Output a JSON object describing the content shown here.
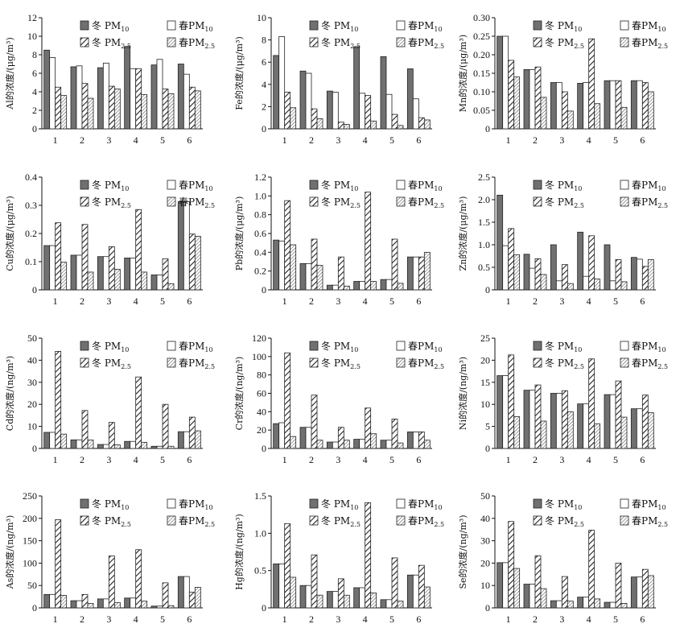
{
  "legend_text": {
    "w10": [
      "冬 PM",
      "10"
    ],
    "s10": [
      "春PM",
      "10"
    ],
    "w25": [
      "冬 PM",
      "2.5"
    ],
    "s25": [
      "春PM",
      "2.5"
    ]
  },
  "legend_styles": {
    "w10": {
      "fill": "#707070",
      "pattern": "solid"
    },
    "s10": {
      "fill": "#ffffff",
      "pattern": "solid"
    },
    "w25": {
      "fill": "#ffffff",
      "pattern": "hatch-wide"
    },
    "s25": {
      "fill": "#ffffff",
      "pattern": "hatch-fine"
    }
  },
  "chart_data": [
    {
      "type": "bar",
      "ylabel": "Al的浓度/(μg/m³)",
      "ylim": [
        0,
        12
      ],
      "yticks": [
        "0",
        "2",
        "4",
        "6",
        "8",
        "10",
        "12"
      ],
      "categories": [
        "1",
        "2",
        "3",
        "4",
        "5",
        "6"
      ],
      "series": [
        {
          "name": "冬 PM10",
          "values": [
            8.5,
            6.7,
            6.6,
            8.9,
            6.9,
            7.0
          ]
        },
        {
          "name": "春PM10",
          "values": [
            7.7,
            6.8,
            7.1,
            6.5,
            7.5,
            5.9
          ]
        },
        {
          "name": "冬 PM2.5",
          "values": [
            4.5,
            4.9,
            4.6,
            6.5,
            4.3,
            4.5
          ]
        },
        {
          "name": "春PM2.5",
          "values": [
            3.6,
            3.3,
            4.3,
            3.7,
            3.8,
            4.1
          ]
        }
      ]
    },
    {
      "type": "bar",
      "ylabel": "Fe的浓度/(μg/m³)",
      "ylim": [
        0,
        10
      ],
      "yticks": [
        "0",
        "2",
        "4",
        "6",
        "8",
        "10"
      ],
      "categories": [
        "1",
        "2",
        "3",
        "4",
        "5",
        "6"
      ],
      "series": [
        {
          "name": "冬 PM10",
          "values": [
            6.6,
            5.2,
            3.4,
            7.4,
            6.5,
            5.4
          ]
        },
        {
          "name": "春PM10",
          "values": [
            8.3,
            5.0,
            3.3,
            3.2,
            3.1,
            2.7
          ]
        },
        {
          "name": "冬 PM2.5",
          "values": [
            3.3,
            1.8,
            0.6,
            3.0,
            1.3,
            1.0
          ]
        },
        {
          "name": "春PM2.5",
          "values": [
            1.9,
            0.9,
            0.4,
            0.7,
            0.3,
            0.8
          ]
        }
      ]
    },
    {
      "type": "bar",
      "ylabel": "Mn的浓度/(μg/m³)",
      "ylim": [
        0,
        0.3
      ],
      "yticks": [
        "0",
        "0.05",
        "0.10",
        "0.15",
        "0.20",
        "0.25",
        "0.30"
      ],
      "categories": [
        "1",
        "2",
        "3",
        "4",
        "5",
        "6"
      ],
      "series": [
        {
          "name": "冬 PM10",
          "values": [
            0.25,
            0.16,
            0.125,
            0.123,
            0.13,
            0.13
          ]
        },
        {
          "name": "春PM10",
          "values": [
            0.25,
            0.16,
            0.125,
            0.125,
            0.13,
            0.13
          ]
        },
        {
          "name": "冬 PM2.5",
          "values": [
            0.185,
            0.167,
            0.1,
            0.243,
            0.13,
            0.125
          ]
        },
        {
          "name": "春PM2.5",
          "values": [
            0.14,
            0.085,
            0.048,
            0.068,
            0.058,
            0.1
          ]
        }
      ]
    },
    {
      "type": "bar",
      "ylabel": "Cu的浓度/(μg/m³)",
      "ylim": [
        0,
        0.4
      ],
      "yticks": [
        "0",
        "0.1",
        "0.2",
        "0.3",
        "0.4"
      ],
      "categories": [
        "1",
        "2",
        "3",
        "4",
        "5",
        "6"
      ],
      "series": [
        {
          "name": "冬 PM10",
          "values": [
            0.157,
            0.123,
            0.118,
            0.113,
            0.053,
            0.313
          ]
        },
        {
          "name": "春PM10",
          "values": [
            0.157,
            0.123,
            0.118,
            0.113,
            0.053,
            0.313
          ]
        },
        {
          "name": "冬 PM2.5",
          "values": [
            0.238,
            0.232,
            0.153,
            0.285,
            0.11,
            0.198
          ]
        },
        {
          "name": "春PM2.5",
          "values": [
            0.098,
            0.063,
            0.073,
            0.063,
            0.022,
            0.19
          ]
        }
      ]
    },
    {
      "type": "bar",
      "ylabel": "Pb的浓度/(μg/m³)",
      "ylim": [
        0,
        1.2
      ],
      "yticks": [
        "0",
        "0.2",
        "0.4",
        "0.6",
        "0.8",
        "1.0",
        "1.2"
      ],
      "categories": [
        "1",
        "2",
        "3",
        "4",
        "5",
        "6"
      ],
      "series": [
        {
          "name": "冬 PM10",
          "values": [
            0.53,
            0.28,
            0.05,
            0.09,
            0.11,
            0.35
          ]
        },
        {
          "name": "春PM10",
          "values": [
            0.52,
            0.28,
            0.05,
            0.09,
            0.11,
            0.35
          ]
        },
        {
          "name": "冬 PM2.5",
          "values": [
            0.95,
            0.54,
            0.35,
            1.04,
            0.54,
            0.35
          ]
        },
        {
          "name": "春PM2.5",
          "values": [
            0.48,
            0.26,
            0.04,
            0.09,
            0.07,
            0.4
          ]
        }
      ]
    },
    {
      "type": "bar",
      "ylabel": "Zn的浓度/(μg/m³)",
      "ylim": [
        0,
        2.5
      ],
      "yticks": [
        "0",
        "0.5",
        "1.0",
        "1.5",
        "2.0",
        "2.5"
      ],
      "categories": [
        "1",
        "2",
        "3",
        "4",
        "5",
        "6"
      ],
      "series": [
        {
          "name": "冬 PM10",
          "values": [
            2.1,
            0.79,
            1.0,
            1.28,
            1.0,
            0.72
          ]
        },
        {
          "name": "春PM10",
          "values": [
            0.98,
            0.48,
            0.2,
            0.3,
            0.2,
            0.68
          ]
        },
        {
          "name": "冬 PM2.5",
          "values": [
            1.36,
            0.69,
            0.56,
            1.2,
            0.67,
            0.52
          ]
        },
        {
          "name": "春PM2.5",
          "values": [
            0.78,
            0.34,
            0.14,
            0.24,
            0.18,
            0.67
          ]
        }
      ]
    },
    {
      "type": "bar",
      "ylabel": "Cd的浓度/(ng/m³)",
      "ylim": [
        0,
        50
      ],
      "yticks": [
        "0",
        "10",
        "20",
        "30",
        "40",
        "50"
      ],
      "categories": [
        "1",
        "2",
        "3",
        "4",
        "5",
        "6"
      ],
      "series": [
        {
          "name": "冬 PM10",
          "values": [
            7.3,
            3.9,
            1.8,
            3.2,
            1.0,
            7.6
          ]
        },
        {
          "name": "春PM10",
          "values": [
            7.3,
            3.9,
            1.8,
            3.2,
            1.0,
            7.6
          ]
        },
        {
          "name": "冬 PM2.5",
          "values": [
            44.0,
            17.2,
            11.8,
            32.4,
            20.0,
            14.2
          ]
        },
        {
          "name": "春PM2.5",
          "values": [
            6.5,
            3.8,
            1.6,
            2.8,
            1.0,
            8.0
          ]
        }
      ]
    },
    {
      "type": "bar",
      "ylabel": "Cr的浓度/(ng/m³)",
      "ylim": [
        0,
        120
      ],
      "yticks": [
        "0",
        "20",
        "40",
        "60",
        "80",
        "100",
        "120"
      ],
      "categories": [
        "1",
        "2",
        "3",
        "4",
        "5",
        "6"
      ],
      "series": [
        {
          "name": "冬 PM10",
          "values": [
            27,
            23,
            7,
            10,
            9,
            18
          ]
        },
        {
          "name": "春PM10",
          "values": [
            28,
            23,
            7,
            10,
            9,
            18
          ]
        },
        {
          "name": "冬 PM2.5",
          "values": [
            104,
            58,
            23,
            44,
            32,
            18
          ]
        },
        {
          "name": "春PM2.5",
          "values": [
            13,
            9,
            9,
            16,
            6,
            9
          ]
        }
      ]
    },
    {
      "type": "bar",
      "ylabel": "Ni的浓度/(ng/m³)",
      "ylim": [
        0,
        25
      ],
      "yticks": [
        "0",
        "5",
        "10",
        "15",
        "20",
        "25"
      ],
      "categories": [
        "1",
        "2",
        "3",
        "4",
        "5",
        "6"
      ],
      "series": [
        {
          "name": "冬 PM10",
          "values": [
            16.5,
            13.2,
            12.5,
            10.1,
            12.2,
            9.0
          ]
        },
        {
          "name": "春PM10",
          "values": [
            16.5,
            13.2,
            12.5,
            10.1,
            12.2,
            9.0
          ]
        },
        {
          "name": "冬 PM2.5",
          "values": [
            21.2,
            14.4,
            13.1,
            20.3,
            15.3,
            12.1
          ]
        },
        {
          "name": "春PM2.5",
          "values": [
            7.2,
            6.2,
            8.3,
            5.6,
            7.1,
            8.1
          ]
        }
      ]
    },
    {
      "type": "bar",
      "ylabel": "As的浓度/(ng/m³)",
      "ylim": [
        0,
        250
      ],
      "yticks": [
        "0",
        "50",
        "100",
        "150",
        "200",
        "250"
      ],
      "categories": [
        "1",
        "2",
        "3",
        "4",
        "5",
        "6"
      ],
      "series": [
        {
          "name": "冬 PM10",
          "values": [
            30,
            16,
            20,
            22,
            4,
            70
          ]
        },
        {
          "name": "春PM10",
          "values": [
            30,
            16,
            20,
            22,
            4,
            70
          ]
        },
        {
          "name": "冬 PM2.5",
          "values": [
            197,
            30,
            116,
            130,
            56,
            35
          ]
        },
        {
          "name": "春PM2.5",
          "values": [
            28,
            10,
            12,
            15,
            5,
            46
          ]
        }
      ]
    },
    {
      "type": "bar",
      "ylabel": "Hg的浓度/(ng/m³)",
      "ylim": [
        0,
        1.5
      ],
      "yticks": [
        "0",
        "0.5",
        "1.0",
        "1.5"
      ],
      "categories": [
        "1",
        "2",
        "3",
        "4",
        "5",
        "6"
      ],
      "series": [
        {
          "name": "冬 PM10",
          "values": [
            0.59,
            0.3,
            0.22,
            0.27,
            0.11,
            0.44
          ]
        },
        {
          "name": "春PM10",
          "values": [
            0.59,
            0.3,
            0.22,
            0.27,
            0.11,
            0.44
          ]
        },
        {
          "name": "冬 PM2.5",
          "values": [
            1.13,
            0.71,
            0.39,
            1.41,
            0.67,
            0.57
          ]
        },
        {
          "name": "春PM2.5",
          "values": [
            0.41,
            0.17,
            0.17,
            0.2,
            0.09,
            0.28
          ]
        }
      ]
    },
    {
      "type": "bar",
      "ylabel": "Se的浓度/(ng/m³)",
      "ylim": [
        0,
        50
      ],
      "yticks": [
        "0",
        "10",
        "20",
        "30",
        "40",
        "50"
      ],
      "categories": [
        "1",
        "2",
        "3",
        "4",
        "5",
        "6"
      ],
      "series": [
        {
          "name": "冬 PM10",
          "values": [
            20.2,
            10.6,
            3.2,
            4.8,
            2.5,
            13.8
          ]
        },
        {
          "name": "春PM10",
          "values": [
            20.2,
            10.6,
            3.2,
            4.8,
            2.5,
            13.8
          ]
        },
        {
          "name": "冬 PM2.5",
          "values": [
            38.6,
            23.3,
            14.0,
            34.7,
            20.0,
            17.2
          ]
        },
        {
          "name": "春PM2.5",
          "values": [
            17.6,
            8.6,
            3.0,
            4.0,
            2.0,
            14.4
          ]
        }
      ]
    }
  ]
}
